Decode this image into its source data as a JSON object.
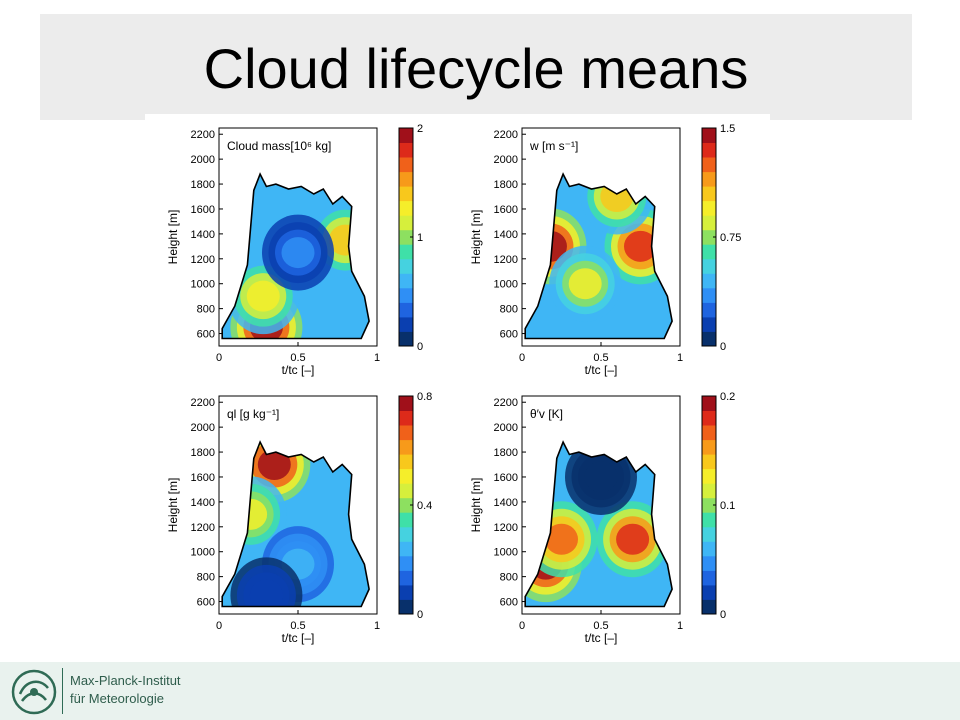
{
  "slide": {
    "title": "Cloud lifecycle means"
  },
  "footer": {
    "org_line1": "Max-Planck-Institut",
    "org_line2": "für Meteorologie"
  },
  "colors": {
    "title_bar": "#ececec",
    "footer_bg": "#e9f2ee",
    "footer_text": "#2f5d4c",
    "colormap": [
      "#08306b",
      "#0a3fb0",
      "#1f64e0",
      "#2f8ff5",
      "#3fb6f5",
      "#45d2e0",
      "#3fe0a8",
      "#8de060",
      "#d6ef3c",
      "#f5ee2a",
      "#f8c81c",
      "#f79a1a",
      "#f0611a",
      "#dd2a1a",
      "#a0101a"
    ]
  },
  "chart_data": [
    {
      "type": "heatmap",
      "title": "Cloud mass[10⁶ kg]",
      "xlabel": "t/tc [–]",
      "ylabel": "Height [m]",
      "xlim": [
        0,
        1
      ],
      "ylim": [
        500,
        2250
      ],
      "x_ticks": [
        0,
        0.5,
        1
      ],
      "x_tick_labels": [
        "0",
        "0.5",
        "1"
      ],
      "y_ticks": [
        600,
        800,
        1000,
        1200,
        1400,
        1600,
        1800,
        2000,
        2200
      ],
      "y_tick_labels": [
        "600",
        "800",
        "1000",
        "1200",
        "1400",
        "1600",
        "1800",
        "2000",
        "2200"
      ],
      "colorbar_range": [
        0,
        2
      ],
      "colorbar_ticks": [
        0,
        1,
        2
      ],
      "colorbar_tick_labels": [
        "0",
        "1",
        "2"
      ],
      "features": [
        {
          "x": 0.3,
          "y": 650,
          "value": 2.0
        },
        {
          "x": 0.28,
          "y": 900,
          "value": 1.3
        },
        {
          "x": 0.8,
          "y": 1350,
          "value": 1.4
        },
        {
          "x": 0.5,
          "y": 1250,
          "value": 0.4
        }
      ]
    },
    {
      "type": "heatmap",
      "title": "w [m s⁻¹]",
      "xlabel": "t/tc [–]",
      "ylabel": "Height [m]",
      "xlim": [
        0,
        1
      ],
      "ylim": [
        500,
        2250
      ],
      "x_ticks": [
        0,
        0.5,
        1
      ],
      "x_tick_labels": [
        "0",
        "0.5",
        "1"
      ],
      "y_ticks": [
        600,
        800,
        1000,
        1200,
        1400,
        1600,
        1800,
        2000,
        2200
      ],
      "y_tick_labels": [
        "600",
        "800",
        "1000",
        "1200",
        "1400",
        "1600",
        "1800",
        "2000",
        "2200"
      ],
      "colorbar_range": [
        0,
        1.5
      ],
      "colorbar_ticks": [
        0,
        0.75,
        1.5
      ],
      "colorbar_tick_labels": [
        "0",
        "0.75",
        "1.5"
      ],
      "features": [
        {
          "x": 0.18,
          "y": 1300,
          "value": 1.5
        },
        {
          "x": 0.75,
          "y": 1300,
          "value": 1.4
        },
        {
          "x": 0.4,
          "y": 1000,
          "value": 0.9
        },
        {
          "x": 0.6,
          "y": 1700,
          "value": 1.0
        }
      ]
    },
    {
      "type": "heatmap",
      "title": "ql [g kg⁻¹]",
      "xlabel": "t/tc [–]",
      "ylabel": "Height [m]",
      "xlim": [
        0,
        1
      ],
      "ylim": [
        500,
        2250
      ],
      "x_ticks": [
        0,
        0.5,
        1
      ],
      "x_tick_labels": [
        "0",
        "0.5",
        "1"
      ],
      "y_ticks": [
        600,
        800,
        1000,
        1200,
        1400,
        1600,
        1800,
        2000,
        2200
      ],
      "y_tick_labels": [
        "600",
        "800",
        "1000",
        "1200",
        "1400",
        "1600",
        "1800",
        "2000",
        "2200"
      ],
      "colorbar_range": [
        0,
        0.8
      ],
      "colorbar_ticks": [
        0,
        0.4,
        0.8
      ],
      "colorbar_tick_labels": [
        "0",
        "0.4",
        "0.8"
      ],
      "features": [
        {
          "x": 0.35,
          "y": 1700,
          "value": 0.8
        },
        {
          "x": 0.2,
          "y": 1300,
          "value": 0.5
        },
        {
          "x": 0.5,
          "y": 900,
          "value": 0.25
        },
        {
          "x": 0.3,
          "y": 650,
          "value": 0.1
        }
      ]
    },
    {
      "type": "heatmap",
      "title": "θ′v [K]",
      "xlabel": "t/tc [–]",
      "ylabel": "Height [m]",
      "xlim": [
        0,
        1
      ],
      "ylim": [
        500,
        2250
      ],
      "x_ticks": [
        0,
        0.5,
        1
      ],
      "x_tick_labels": [
        "0",
        "0.5",
        "1"
      ],
      "y_ticks": [
        600,
        800,
        1000,
        1200,
        1400,
        1600,
        1800,
        2000,
        2200
      ],
      "y_tick_labels": [
        "600",
        "800",
        "1000",
        "1200",
        "1400",
        "1600",
        "1800",
        "2000",
        "2200"
      ],
      "colorbar_range": [
        0,
        0.2
      ],
      "colorbar_ticks": [
        0,
        0.1,
        0.2
      ],
      "colorbar_tick_labels": [
        "0",
        "0.1",
        "0.2"
      ],
      "features": [
        {
          "x": 0.15,
          "y": 900,
          "value": 0.2
        },
        {
          "x": 0.25,
          "y": 1100,
          "value": 0.17
        },
        {
          "x": 0.7,
          "y": 1100,
          "value": 0.18
        },
        {
          "x": 0.5,
          "y": 1600,
          "value": 0.0
        }
      ]
    }
  ]
}
